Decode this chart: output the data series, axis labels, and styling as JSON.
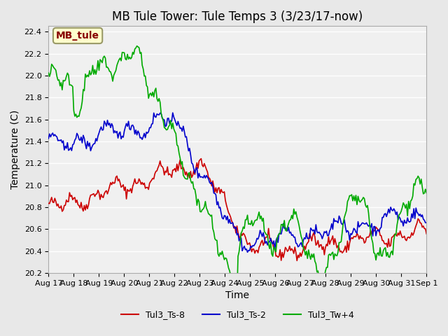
{
  "title": "MB Tule Tower: Tule Temps 3 (3/23/17-now)",
  "xlabel": "Time",
  "ylabel": "Temperature (C)",
  "ylim": [
    20.2,
    22.45
  ],
  "yticks": [
    20.2,
    20.4,
    20.6,
    20.8,
    21.0,
    21.2,
    21.4,
    21.6,
    21.8,
    22.0,
    22.2,
    22.4
  ],
  "xtick_labels": [
    "Aug 17",
    "Aug 18",
    "Aug 19",
    "Aug 20",
    "Aug 21",
    "Aug 22",
    "Aug 23",
    "Aug 24",
    "Aug 25",
    "Aug 26",
    "Aug 27",
    "Aug 28",
    "Aug 29",
    "Aug 30",
    "Aug 31",
    "Sep 1"
  ],
  "legend_labels": [
    "Tul3_Ts-8",
    "Tul3_Ts-2",
    "Tul3_Tw+4"
  ],
  "line_colors": [
    "#cc0000",
    "#0000cc",
    "#00aa00"
  ],
  "bg_color": "#e8e8e8",
  "plot_bg": "#f0f0f0",
  "grid_color": "#ffffff",
  "box_color": "#ffffcc",
  "box_edge_color": "#999966",
  "box_text_color": "#880000",
  "title_fontsize": 12,
  "axis_fontsize": 10,
  "tick_fontsize": 8,
  "legend_fontsize": 9,
  "linewidth": 1.2,
  "n_points": 360
}
